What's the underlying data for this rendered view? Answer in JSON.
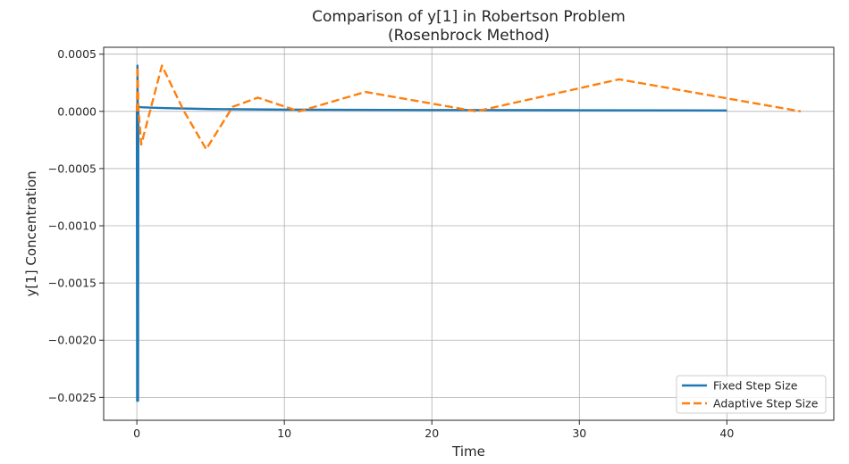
{
  "chart_data": {
    "type": "line",
    "title": "Comparison of y[1] in Robertson Problem",
    "subtitle": "(Rosenbrock Method)",
    "xlabel": "Time",
    "ylabel": "y[1] Concentration",
    "xlim": [
      -2.25,
      47.25
    ],
    "ylim": [
      -0.0027,
      0.00056
    ],
    "xticks": [
      0,
      10,
      20,
      30,
      40
    ],
    "xtick_labels": [
      "0",
      "10",
      "20",
      "30",
      "40"
    ],
    "yticks": [
      0.0005,
      0.0,
      -0.0005,
      -0.001,
      -0.0015,
      -0.002,
      -0.0025
    ],
    "ytick_labels": [
      "0.0005",
      "0.0000",
      "−0.0005",
      "−0.0010",
      "−0.0015",
      "−0.0020",
      "−0.0025"
    ],
    "grid": true,
    "legend_position": "lower-right",
    "series": [
      {
        "name": "Fixed Step Size",
        "color": "#1f77b4",
        "style": "solid",
        "x": [
          0.0,
          0.02,
          0.04,
          0.06,
          0.08,
          0.1,
          0.3,
          1,
          2,
          5,
          10,
          20,
          30,
          40
        ],
        "y": [
          0.0,
          -0.00253,
          0.0004,
          4.5e-05,
          -0.00253,
          4e-05,
          3.6e-05,
          3.2e-05,
          2.8e-05,
          2e-05,
          1.5e-05,
          1.2e-05,
          1e-05,
          8e-06
        ]
      },
      {
        "name": "Adaptive Step Size",
        "color": "#ff7f0e",
        "style": "dashed",
        "x": [
          0.0,
          0.05,
          0.1,
          0.3,
          1.7,
          3.2,
          4.7,
          6.5,
          8.2,
          11.0,
          15.5,
          23.0,
          32.7,
          45.0
        ],
        "y": [
          0.0,
          0.00039,
          3e-05,
          -0.00029,
          0.0004,
          0.0,
          -0.00033,
          4e-05,
          0.00012,
          0.0,
          0.00017,
          0.0,
          0.00028,
          0.0
        ]
      }
    ]
  }
}
